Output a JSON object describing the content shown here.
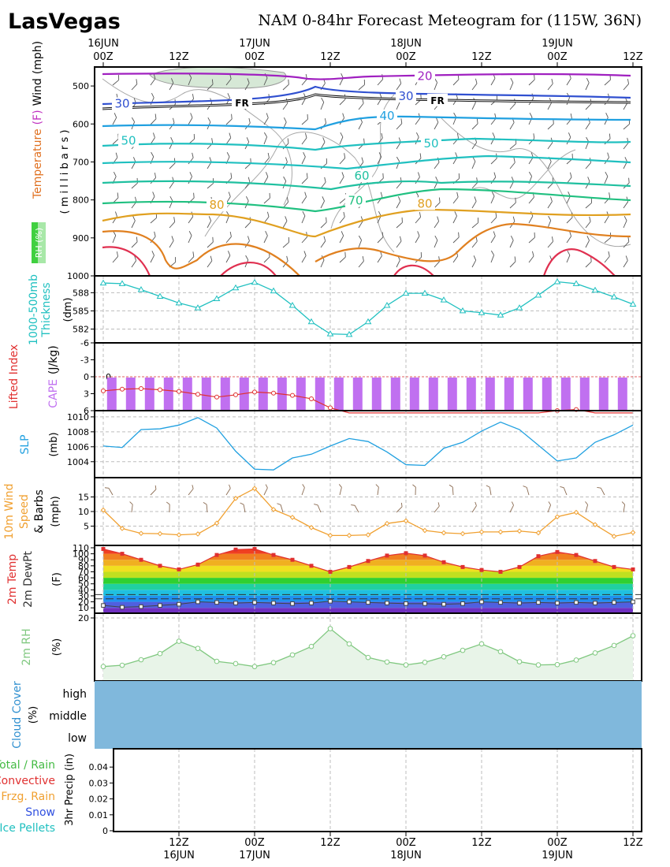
{
  "header": {
    "station": "LasVegas",
    "title": "NAM 0-84hr Forecast Meteogram for (115W, 36N)"
  },
  "time_axis": {
    "top_ticks": [
      {
        "h": 0,
        "label": "00Z",
        "date": "16JUN"
      },
      {
        "h": 12,
        "label": "12Z",
        "date": ""
      },
      {
        "h": 24,
        "label": "00Z",
        "date": "17JUN"
      },
      {
        "h": 36,
        "label": "12Z",
        "date": ""
      },
      {
        "h": 48,
        "label": "00Z",
        "date": "18JUN"
      },
      {
        "h": 60,
        "label": "12Z",
        "date": ""
      },
      {
        "h": 72,
        "label": "00Z",
        "date": "19JUN"
      },
      {
        "h": 84,
        "label": "12Z",
        "date": ""
      }
    ],
    "bottom_ticks": [
      {
        "h": 12,
        "label": "12Z",
        "date": "16JUN"
      },
      {
        "h": 24,
        "label": "00Z",
        "date": "17JUN"
      },
      {
        "h": 36,
        "label": "12Z",
        "date": ""
      },
      {
        "h": 48,
        "label": "00Z",
        "date": "18JUN"
      },
      {
        "h": 60,
        "label": "12Z",
        "date": ""
      },
      {
        "h": 72,
        "label": "00Z",
        "date": "19JUN"
      },
      {
        "h": 84,
        "label": "12Z",
        "date": ""
      }
    ]
  },
  "colors": {
    "temperature": "#e07020",
    "rh_label": "#55cc55",
    "thickness": "#20c0c0",
    "lifted_index": "#e03030",
    "cape": "#c070f0",
    "slp": "#20a0e0",
    "wind10m": "#f0a030",
    "temp2m": "#e03030",
    "rh2m": "#80c880",
    "cloud": "#80b8dc"
  },
  "chart_data": [
    {
      "type": "line",
      "panel": "upper_air",
      "label_parts": [
        "Temperature",
        "(F)",
        "Wind",
        "(mph)"
      ],
      "ylabel": "(millibars)",
      "y_ticks": [
        500,
        600,
        700,
        800,
        900
      ],
      "ylim": [
        1000,
        450
      ],
      "rh_label": "RH (%)",
      "isotherm_labels": [
        {
          "text": "20",
          "h": 51,
          "p": 482,
          "color": "#a020c0"
        },
        {
          "text": "30",
          "h": 3,
          "p": 555,
          "color": "#3050d0"
        },
        {
          "text": "FR",
          "h": 22,
          "p": 552,
          "color": "#000000"
        },
        {
          "text": "30",
          "h": 48,
          "p": 535,
          "color": "#3050d0"
        },
        {
          "text": "FR",
          "h": 53,
          "p": 545,
          "color": "#000000"
        },
        {
          "text": "40",
          "h": 45,
          "p": 587,
          "color": "#20a0e0"
        },
        {
          "text": "50",
          "h": 4,
          "p": 652,
          "color": "#20c0c0"
        },
        {
          "text": "50",
          "h": 52,
          "p": 660,
          "color": "#20c0c0"
        },
        {
          "text": "60",
          "h": 41,
          "p": 745,
          "color": "#20c0a0"
        },
        {
          "text": "70",
          "h": 40,
          "p": 810,
          "color": "#20c080"
        },
        {
          "text": "80",
          "h": 18,
          "p": 822,
          "color": "#e0a020"
        },
        {
          "text": "80",
          "h": 51,
          "p": 818,
          "color": "#e0a020"
        }
      ]
    },
    {
      "type": "line",
      "panel": "thickness",
      "label": "1000-500mb Thickness",
      "unit": "(dm)",
      "y_ticks": [
        582,
        585,
        588
      ],
      "ylim": [
        580.5,
        590
      ],
      "x": [
        0,
        3,
        6,
        9,
        12,
        15,
        18,
        21,
        24,
        27,
        30,
        33,
        36,
        39,
        42,
        45,
        48,
        51,
        54,
        57,
        60,
        63,
        66,
        69,
        72,
        75,
        78,
        81,
        84
      ],
      "values": [
        589.6,
        589.5,
        588.5,
        587.4,
        586.3,
        585.5,
        587.0,
        588.8,
        589.7,
        588.3,
        585.9,
        583.2,
        581.2,
        581.1,
        583.2,
        585.9,
        587.9,
        587.9,
        586.8,
        585.0,
        584.7,
        584.3,
        585.5,
        587.6,
        589.8,
        589.5,
        588.4,
        587.3,
        586.1
      ]
    },
    {
      "type": "bar",
      "panel": "stability",
      "label_li": "Lifted Index",
      "label_cape": "CAPE (J/kg)",
      "li_ticks": [
        -6,
        -3,
        0,
        3,
        6
      ],
      "ylim": [
        -6,
        6
      ],
      "cape_zero_label": "0",
      "x": [
        0,
        3,
        6,
        9,
        12,
        15,
        18,
        21,
        24,
        27,
        30,
        33,
        36,
        39,
        42,
        45,
        48,
        51,
        54,
        57,
        60,
        63,
        66,
        69,
        72,
        75,
        78,
        81,
        84
      ],
      "lifted_index": [
        2.5,
        2.2,
        2.1,
        2.3,
        2.6,
        3.1,
        3.6,
        3.2,
        2.7,
        2.9,
        3.3,
        3.9,
        5.5,
        6.5,
        6.5,
        6.5,
        6.5,
        6.5,
        6.5,
        6.5,
        6.5,
        6.5,
        6.5,
        6.5,
        6.0,
        5.8,
        6.5,
        6.5,
        6.5
      ],
      "cape": [
        0,
        0,
        0,
        0,
        0,
        0,
        0,
        0,
        0,
        0,
        0,
        0,
        0,
        0,
        0,
        0,
        0,
        0,
        0,
        0,
        0,
        0,
        0,
        0,
        0,
        0,
        0,
        0,
        0
      ]
    },
    {
      "type": "line",
      "panel": "slp",
      "label": "SLP",
      "unit": "(mb)",
      "y_ticks": [
        1004,
        1006,
        1008,
        1010
      ],
      "ylim": [
        1002.5,
        1010.2
      ],
      "x": [
        0,
        3,
        6,
        9,
        12,
        15,
        18,
        21,
        24,
        27,
        30,
        33,
        36,
        39,
        42,
        45,
        48,
        51,
        54,
        57,
        60,
        63,
        66,
        69,
        72,
        75,
        78,
        81,
        84
      ],
      "values": [
        1006.1,
        1005.9,
        1008.3,
        1008.4,
        1008.9,
        1009.9,
        1008.5,
        1005.4,
        1003.0,
        1002.9,
        1004.5,
        1005.0,
        1006.1,
        1007.1,
        1006.7,
        1005.3,
        1003.6,
        1003.5,
        1005.8,
        1006.6,
        1008.1,
        1009.3,
        1008.3,
        1006.2,
        1004.1,
        1004.5,
        1006.6,
        1007.6,
        1008.9
      ]
    },
    {
      "type": "line",
      "panel": "wind10m",
      "label": "10m Wind Speed & Barbs",
      "unit": "(mph)",
      "y_ticks": [
        5,
        10,
        15
      ],
      "ylim": [
        0,
        20
      ],
      "x": [
        0,
        3,
        6,
        9,
        12,
        15,
        18,
        21,
        24,
        27,
        30,
        33,
        36,
        39,
        42,
        45,
        48,
        51,
        54,
        57,
        60,
        63,
        66,
        69,
        72,
        75,
        78,
        81,
        84
      ],
      "values": [
        10.5,
        4.2,
        2.5,
        2.4,
        2.0,
        2.3,
        6.0,
        14.5,
        17.9,
        10.7,
        8.0,
        4.5,
        1.8,
        1.8,
        2.0,
        5.9,
        6.8,
        3.5,
        2.7,
        2.4,
        3.0,
        3.0,
        3.3,
        2.7,
        8.2,
        9.7,
        5.5,
        1.5,
        2.8
      ]
    },
    {
      "type": "area",
      "panel": "temp2m",
      "label_temp": "2m Temp",
      "label_dewpt": "2m DewPt",
      "unit": "(F)",
      "y_ticks": [
        10,
        20,
        30,
        40,
        50,
        60,
        70,
        80,
        90,
        100,
        110
      ],
      "ylim": [
        5,
        110
      ],
      "x": [
        0,
        3,
        6,
        9,
        12,
        15,
        18,
        21,
        24,
        27,
        30,
        33,
        36,
        39,
        42,
        45,
        48,
        51,
        54,
        57,
        60,
        63,
        66,
        69,
        72,
        75,
        78,
        81,
        84
      ],
      "temperature": [
        108,
        100,
        90,
        80,
        74,
        82,
        98,
        107,
        108,
        98,
        90,
        80,
        70,
        78,
        88,
        97,
        101,
        97,
        86,
        78,
        73,
        70,
        78,
        96,
        103,
        98,
        88,
        78,
        74
      ],
      "dewpoint": [
        14,
        11,
        12,
        14,
        16,
        20,
        19,
        18,
        19,
        18,
        17,
        18,
        21,
        20,
        19,
        18,
        17,
        17,
        16,
        17,
        20,
        19,
        18,
        19,
        18,
        19,
        18,
        19,
        20
      ],
      "ref_dashed": [
        32,
        25
      ],
      "band_colors": [
        "#7030c0",
        "#5060e0",
        "#2090f0",
        "#20c0e0",
        "#20d0a0",
        "#30d030",
        "#c0e020",
        "#f0e020",
        "#f0b020",
        "#f08020",
        "#f04020",
        "#e01010"
      ]
    },
    {
      "type": "area",
      "panel": "rh2m",
      "label": "2m RH",
      "unit": "(%)",
      "y_ticks": [
        20
      ],
      "ylim": [
        2,
        20
      ],
      "x": [
        0,
        3,
        6,
        9,
        12,
        15,
        18,
        21,
        24,
        27,
        30,
        33,
        36,
        39,
        42,
        45,
        48,
        51,
        54,
        57,
        60,
        63,
        66,
        69,
        72,
        75,
        78,
        81,
        84
      ],
      "values": [
        5.0,
        5.4,
        7.1,
        9.0,
        12.8,
        10.6,
        6.6,
        5.9,
        5.0,
        6.2,
        8.6,
        11.2,
        16.7,
        12.0,
        7.8,
        6.4,
        5.5,
        6.3,
        8.0,
        10.0,
        12.0,
        9.6,
        6.5,
        5.5,
        5.6,
        7.0,
        9.2,
        11.5,
        14.5
      ]
    },
    {
      "type": "heatmap",
      "panel": "cloud",
      "label": "Cloud Cover (%)",
      "levels": [
        "high",
        "middle",
        "low"
      ],
      "values": [
        0,
        0,
        0
      ]
    },
    {
      "type": "bar",
      "panel": "precip",
      "label": "3hr Precip (in)",
      "y_ticks": [
        "0",
        "0.01",
        "0.02",
        "0.03",
        "0.04"
      ],
      "ylim": [
        0,
        0.05
      ],
      "legend": [
        {
          "name": "Total / Rain",
          "color": "#44bb44"
        },
        {
          "name": "Convective",
          "color": "#e03030"
        },
        {
          "name": "Frzg. Rain",
          "color": "#f0a030"
        },
        {
          "name": "Snow",
          "color": "#3050e0"
        },
        {
          "name": "Ice Pellets",
          "color": "#20c0c0"
        }
      ],
      "values": [
        0,
        0,
        0,
        0,
        0,
        0,
        0,
        0,
        0,
        0,
        0,
        0,
        0,
        0,
        0,
        0,
        0,
        0,
        0,
        0,
        0,
        0,
        0,
        0,
        0,
        0,
        0,
        0,
        0
      ]
    }
  ]
}
